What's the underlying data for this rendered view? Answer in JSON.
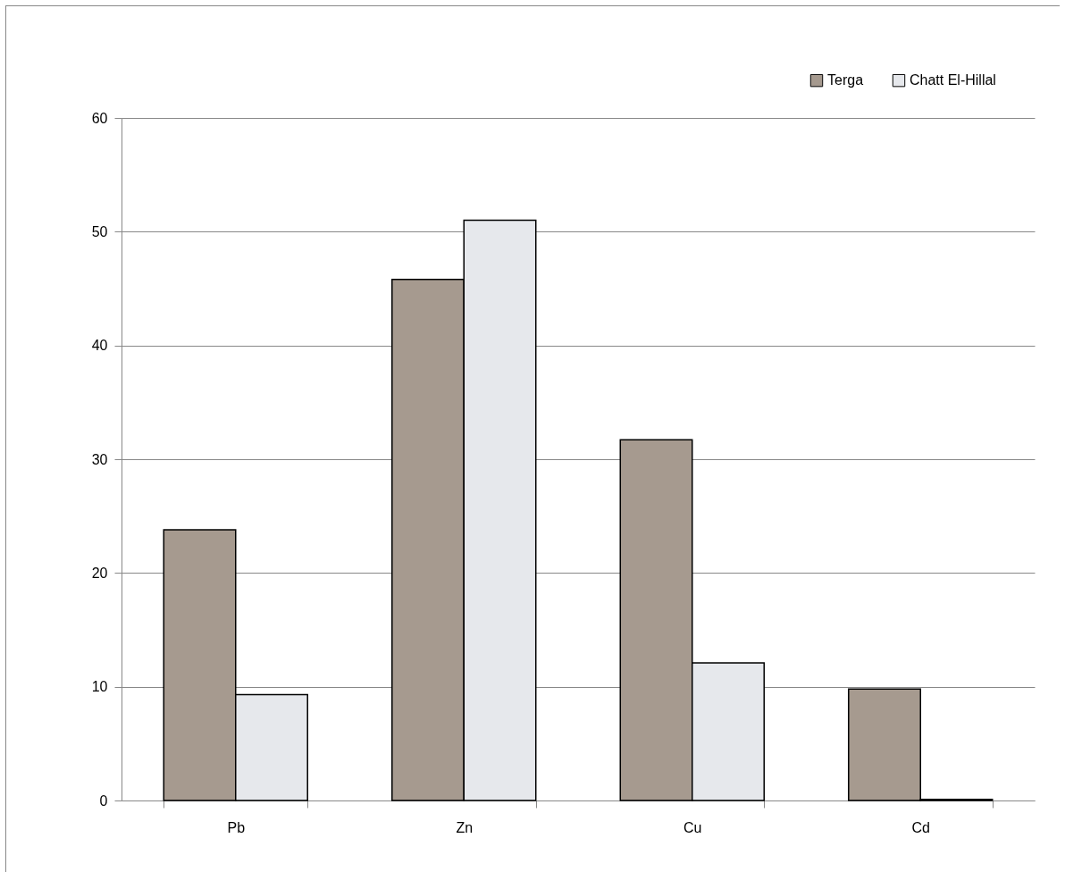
{
  "chart_data": {
    "type": "bar",
    "categories": [
      "Pb",
      "Zn",
      "Cu",
      "Cd"
    ],
    "series": [
      {
        "name": "Terga",
        "color": "#a69a8f",
        "values": [
          23.8,
          45.8,
          31.7,
          9.8
        ]
      },
      {
        "name": "Chatt El-Hillal",
        "color": "#e6e8ec",
        "values": [
          9.3,
          51.0,
          12.1,
          0.1
        ]
      }
    ],
    "ylim": [
      0,
      60
    ],
    "yticks": [
      0,
      10,
      20,
      30,
      40,
      50,
      60
    ],
    "grid": "y",
    "legend": "top right"
  }
}
